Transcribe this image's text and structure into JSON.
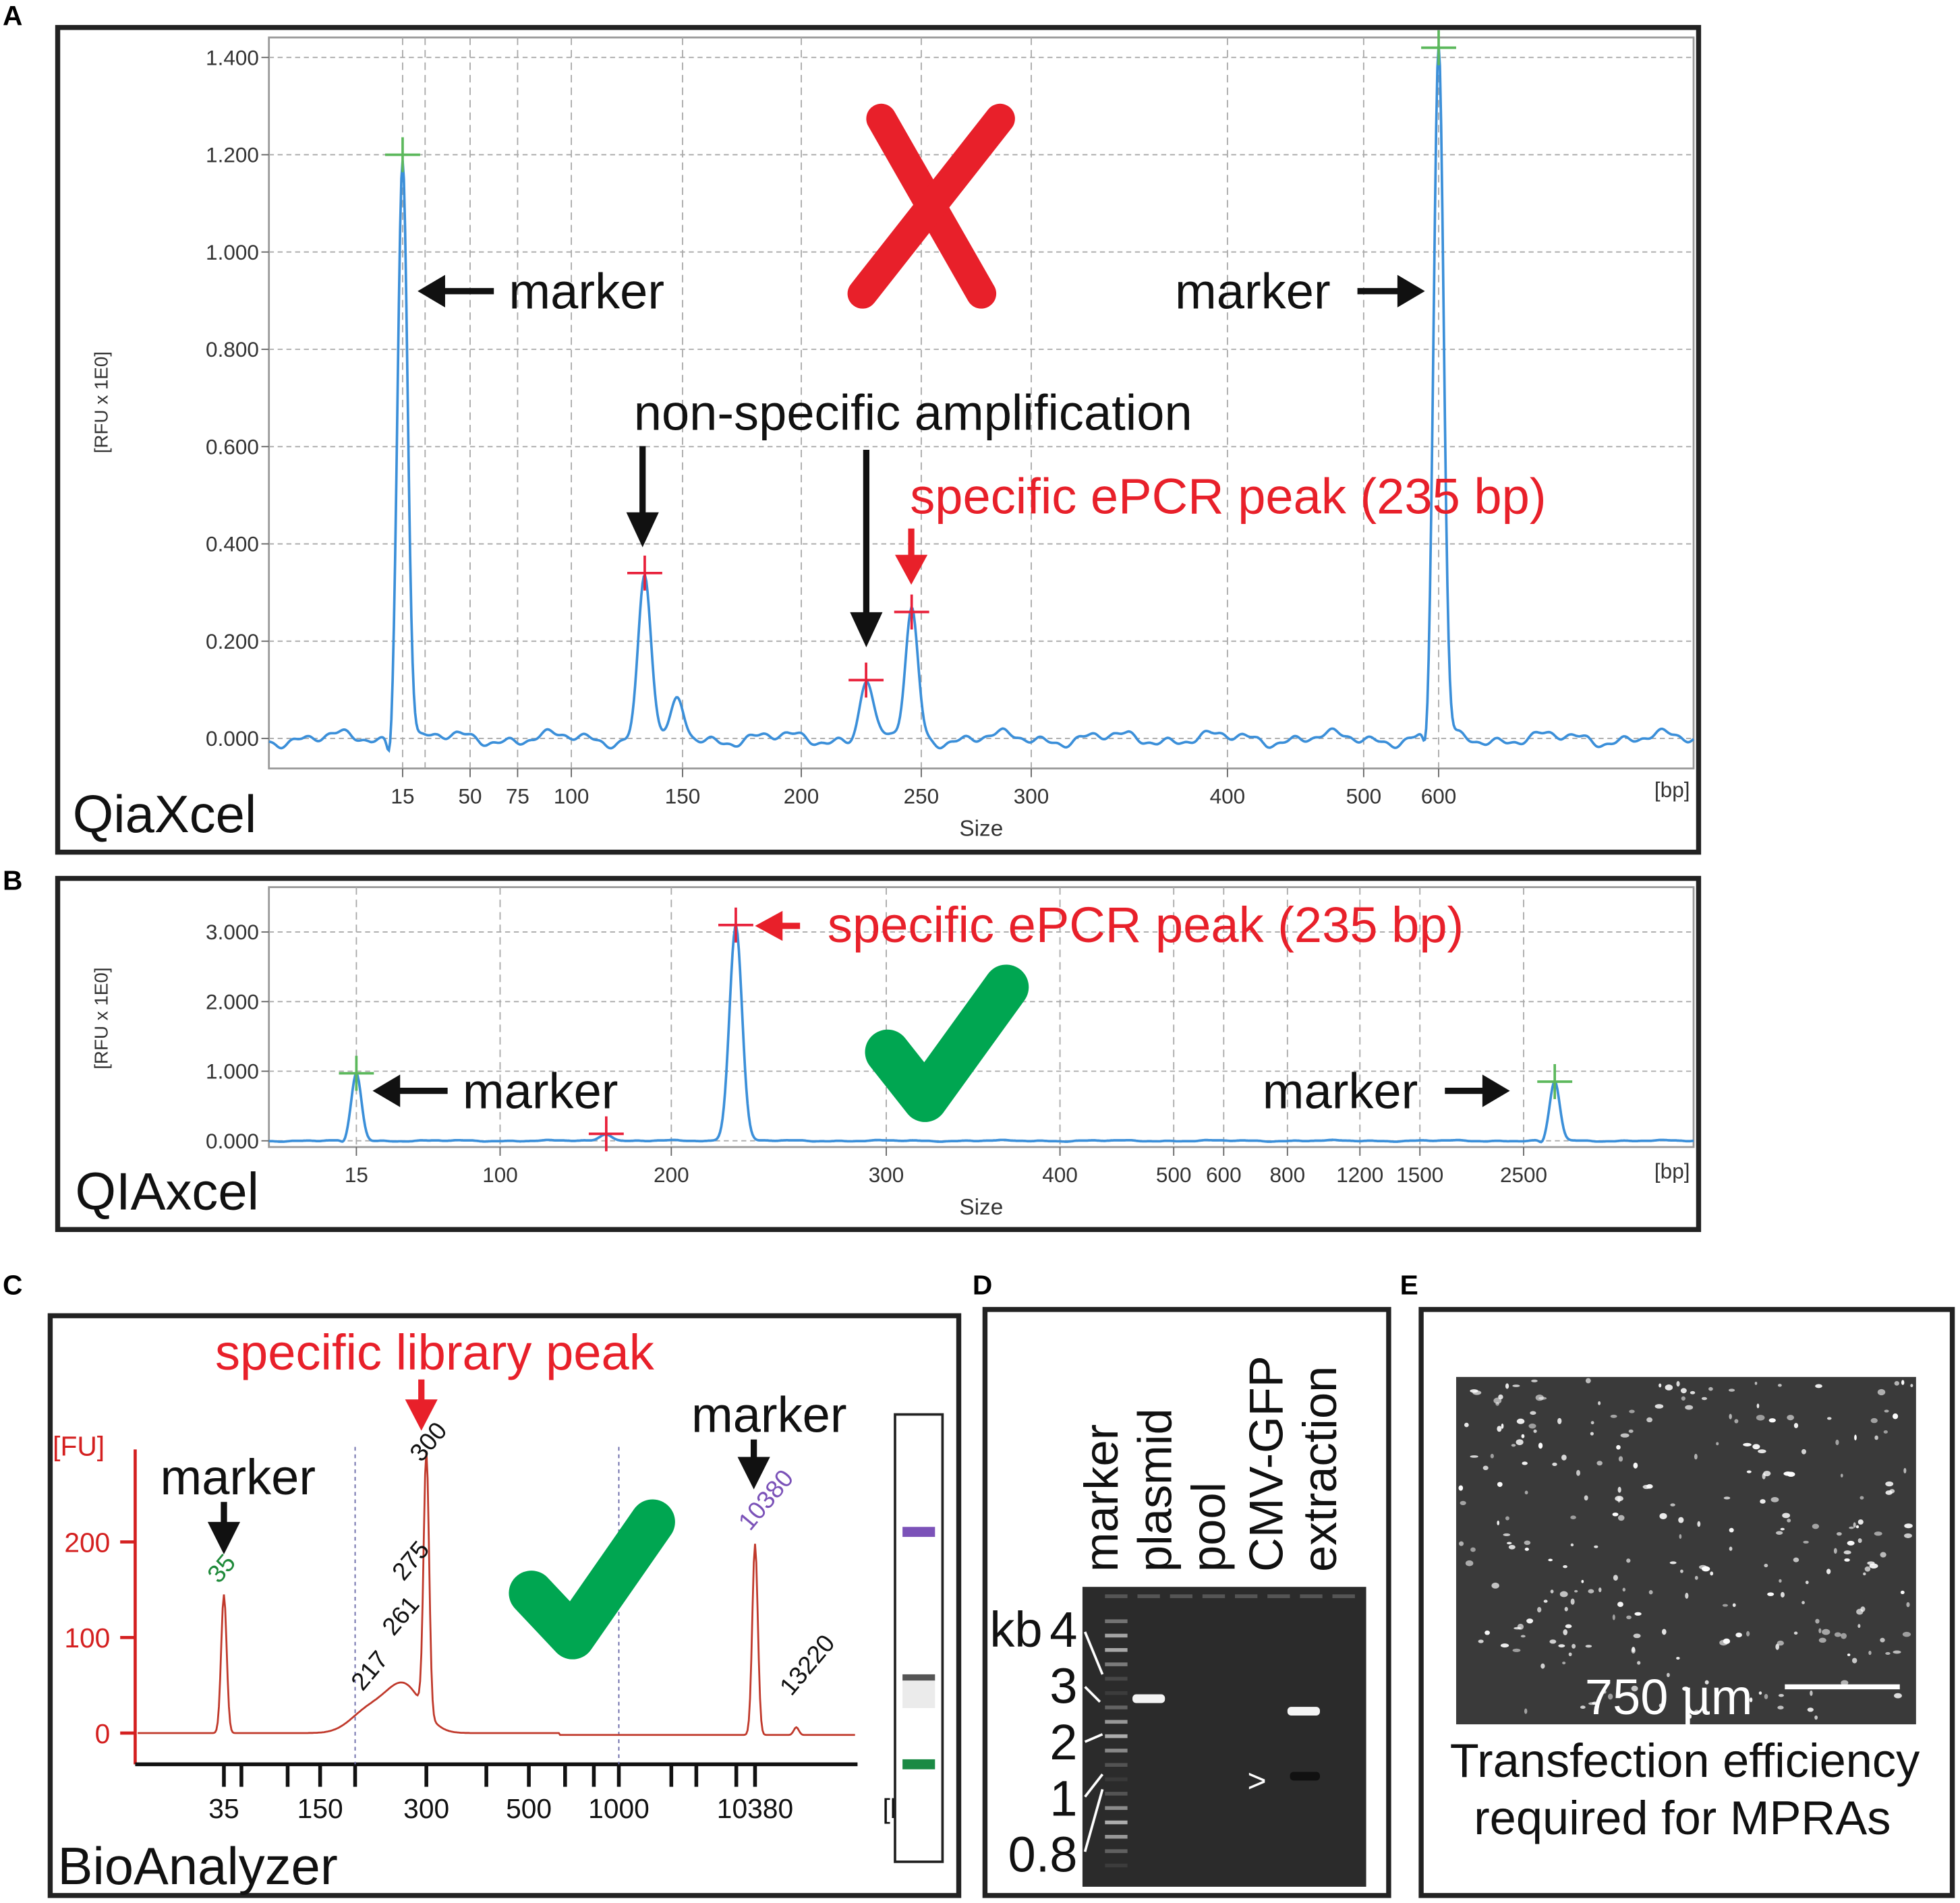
{
  "panel_labels": [
    "A",
    "B",
    "C",
    "D",
    "E"
  ],
  "colors": {
    "trace_qiaxcel": "#3b8fd9",
    "trace_bioanalyzer": "#c0392b",
    "red_annotation": "#e8202a",
    "check": "#00a651",
    "marker_cross": "#5cb85c",
    "peak_cross": "#e8203a"
  },
  "chart_data": [
    {
      "panel": "A",
      "type": "line",
      "instrument_label": "QiaXcel",
      "xlabel": "Size",
      "x_unit": "[bp]",
      "ylabel": "[RFU x 1E0]",
      "x_ticks": [
        15,
        50,
        75,
        100,
        150,
        200,
        250,
        300,
        400,
        500,
        600
      ],
      "y_ticks": [
        "0.000",
        "0.200",
        "0.400",
        "0.600",
        "0.800",
        "1.000",
        "1.200",
        "1.400"
      ],
      "ylim": [
        -0.06,
        1.44
      ],
      "grid": true,
      "peaks": [
        {
          "size_bp": 15,
          "rfu": 1.2,
          "kind": "marker"
        },
        {
          "size_bp": 133,
          "rfu": 0.34,
          "kind": "non-specific"
        },
        {
          "size_bp": 148,
          "rfu": 0.07,
          "kind": "minor"
        },
        {
          "size_bp": 227,
          "rfu": 0.12,
          "kind": "non-specific"
        },
        {
          "size_bp": 246,
          "rfu": 0.26,
          "kind": "specific"
        },
        {
          "size_bp": 600,
          "rfu": 1.42,
          "kind": "marker"
        }
      ],
      "annotations": {
        "marker_left": "marker",
        "marker_right": "marker",
        "nonspecific": "non-specific amplification",
        "specific": "specific ePCR peak (235 bp)",
        "verdict": "fail-x"
      }
    },
    {
      "panel": "B",
      "type": "line",
      "instrument_label": "QIAxcel",
      "xlabel": "Size",
      "x_unit": "[bp]",
      "ylabel": "[RFU x 1E0]",
      "x_ticks": [
        15,
        100,
        200,
        300,
        400,
        500,
        600,
        800,
        1200,
        1500,
        2500
      ],
      "y_ticks": [
        "0.000",
        "1.000",
        "2.000",
        "3.000"
      ],
      "ylim": [
        -0.1,
        3.2
      ],
      "grid": true,
      "peaks": [
        {
          "size_bp": 15,
          "rfu": 0.97,
          "kind": "marker"
        },
        {
          "size_bp": 162,
          "rfu": 0.1,
          "kind": "minor"
        },
        {
          "size_bp": 230,
          "rfu": 3.1,
          "kind": "specific"
        },
        {
          "size_bp": 2800,
          "rfu": 0.85,
          "kind": "marker"
        }
      ],
      "annotations": {
        "marker_left": "marker",
        "marker_right": "marker",
        "specific": "specific ePCR peak (235 bp)",
        "verdict": "pass-check"
      }
    },
    {
      "panel": "C",
      "type": "line",
      "instrument_label": "BioAnalyzer",
      "x_unit": "[bp]",
      "ylabel": "[FU]",
      "x_ticks": [
        35,
        150,
        300,
        500,
        1000,
        10380
      ],
      "y_ticks": [
        "0",
        "100",
        "200"
      ],
      "ylim": [
        -30,
        290
      ],
      "peaks": [
        {
          "size_bp": 35,
          "fu": 145,
          "label": "35",
          "label_color": "#1f8a3a"
        },
        {
          "size_bp": 217,
          "fu": 22,
          "label": "217"
        },
        {
          "size_bp": 261,
          "fu": 26,
          "label": "261"
        },
        {
          "size_bp": 275,
          "fu": 26,
          "label": "275"
        },
        {
          "size_bp": 300,
          "fu": 272,
          "label": "300"
        },
        {
          "size_bp": 10380,
          "fu": 200,
          "label": "10380",
          "label_color": "#7b52b8"
        },
        {
          "size_bp": 13220,
          "fu": 8,
          "label": "13220"
        }
      ],
      "annotations": {
        "marker_left": "marker",
        "marker_right": "marker",
        "specific": "specific library peak",
        "verdict": "pass-check"
      },
      "gel_lane_bands": [
        "#7b52b8",
        "#555555",
        "#1a8a44"
      ]
    }
  ],
  "gel": {
    "panel": "D",
    "lane_labels": [
      "marker",
      "plasmid",
      "pool",
      "CMV-GFP",
      "extraction"
    ],
    "size_labels": [
      "4",
      "3",
      "2",
      "1",
      "0.8",
      "kb"
    ],
    "band_marker": ">"
  },
  "micrograph": {
    "panel": "E",
    "scale_bar": "750 µm",
    "caption_line1": "Transfection efficiency",
    "caption_line2": "required for MPRAs"
  }
}
